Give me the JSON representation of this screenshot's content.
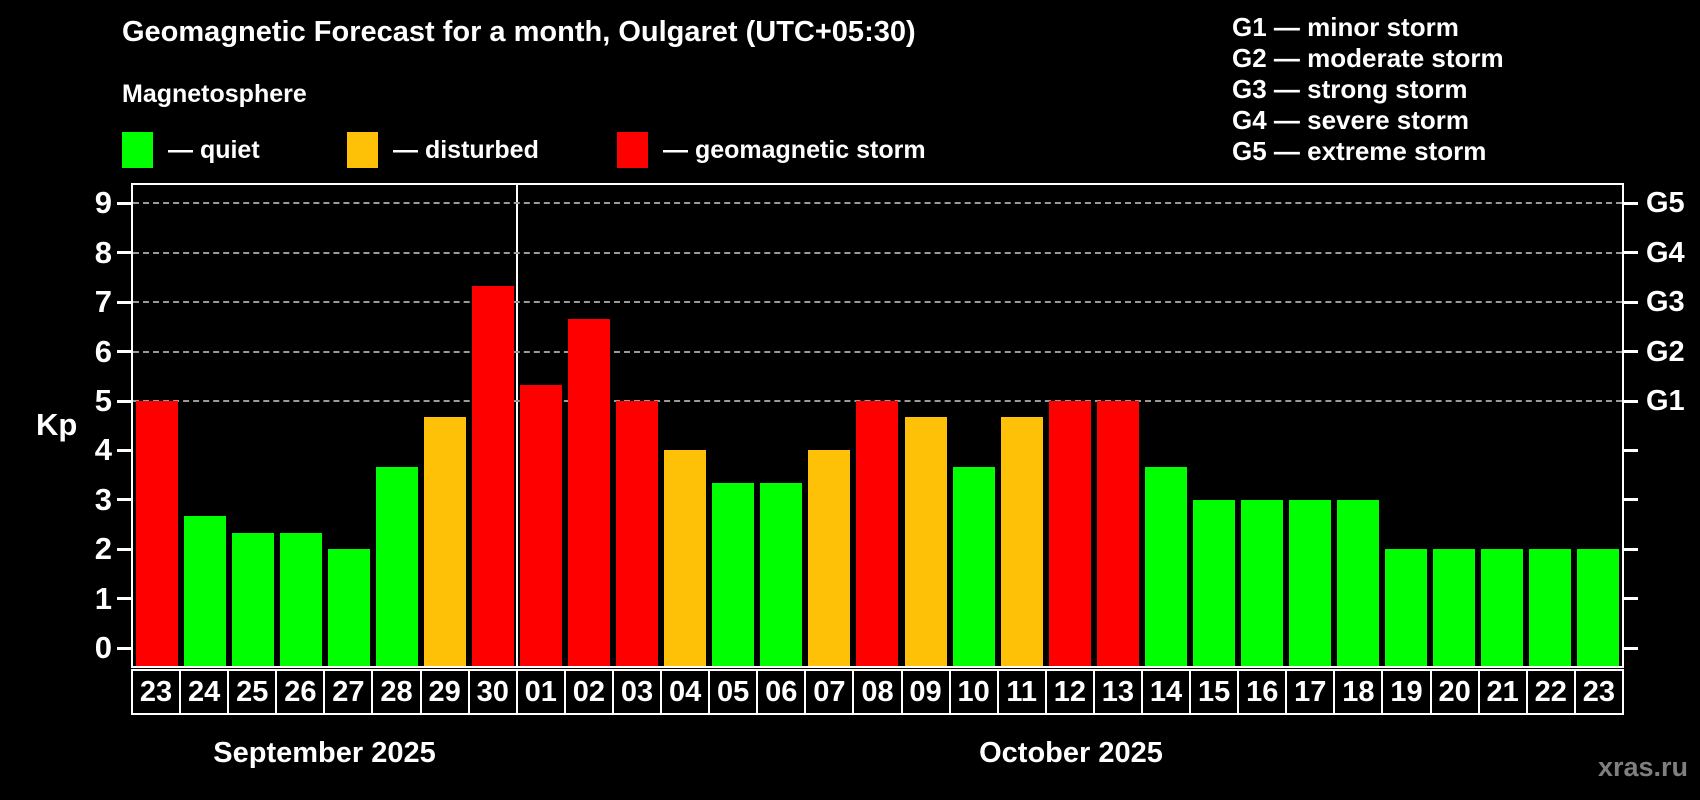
{
  "title": "Geomagnetic Forecast for a month, Oulgaret (UTC+05:30)",
  "subtitle": "Magnetosphere",
  "legend": {
    "items": [
      {
        "label": "— quiet",
        "status": "quiet",
        "color": "#00ff00"
      },
      {
        "label": "— disturbed",
        "status": "disturbed",
        "color": "#ffc107"
      },
      {
        "label": "— geomagnetic storm",
        "status": "storm",
        "color": "#ff0000"
      }
    ]
  },
  "g_legend": {
    "lines": [
      "G1 — minor storm",
      "G2 — moderate storm",
      "G3 — strong storm",
      "G4 — severe storm",
      "G5 — extreme storm"
    ]
  },
  "axis": {
    "kp_label": "Kp",
    "left_ticks": [
      0,
      1,
      2,
      3,
      4,
      5,
      6,
      7,
      8,
      9
    ],
    "right_labels": [
      {
        "kp": 5,
        "label": "G1"
      },
      {
        "kp": 6,
        "label": "G2"
      },
      {
        "kp": 7,
        "label": "G3"
      },
      {
        "kp": 8,
        "label": "G4"
      },
      {
        "kp": 9,
        "label": "G5"
      }
    ]
  },
  "months": [
    {
      "label": "September 2025"
    },
    {
      "label": "October 2025"
    }
  ],
  "watermark": "xras.ru",
  "colors": {
    "quiet": "#00ff00",
    "disturbed": "#ffc107",
    "storm": "#ff0000",
    "grid": "#9a9a9a",
    "axis": "#ffffff",
    "background": "#000000"
  },
  "chart_data": {
    "type": "bar",
    "title": "Geomagnetic Forecast for a month, Oulgaret (UTC+05:30)",
    "xlabel": "",
    "ylabel": "Kp",
    "ylim": [
      -0.4,
      9.4
    ],
    "grid": "dashed horizontal at Kp 5-9 only",
    "gridlines_kp": [
      5,
      6,
      7,
      8,
      9
    ],
    "month_separator_after_index": 7,
    "bars": [
      {
        "month": "September 2025",
        "day": "23",
        "kp": 5.0,
        "status": "storm"
      },
      {
        "month": "September 2025",
        "day": "24",
        "kp": 2.67,
        "status": "quiet"
      },
      {
        "month": "September 2025",
        "day": "25",
        "kp": 2.33,
        "status": "quiet"
      },
      {
        "month": "September 2025",
        "day": "26",
        "kp": 2.33,
        "status": "quiet"
      },
      {
        "month": "September 2025",
        "day": "27",
        "kp": 2.0,
        "status": "quiet"
      },
      {
        "month": "September 2025",
        "day": "28",
        "kp": 3.67,
        "status": "quiet"
      },
      {
        "month": "September 2025",
        "day": "29",
        "kp": 4.67,
        "status": "disturbed"
      },
      {
        "month": "September 2025",
        "day": "30",
        "kp": 7.33,
        "status": "storm"
      },
      {
        "month": "October 2025",
        "day": "01",
        "kp": 5.33,
        "status": "storm"
      },
      {
        "month": "October 2025",
        "day": "02",
        "kp": 6.67,
        "status": "storm"
      },
      {
        "month": "October 2025",
        "day": "03",
        "kp": 5.0,
        "status": "storm"
      },
      {
        "month": "October 2025",
        "day": "04",
        "kp": 4.0,
        "status": "disturbed"
      },
      {
        "month": "October 2025",
        "day": "05",
        "kp": 3.33,
        "status": "quiet"
      },
      {
        "month": "October 2025",
        "day": "06",
        "kp": 3.33,
        "status": "quiet"
      },
      {
        "month": "October 2025",
        "day": "07",
        "kp": 4.0,
        "status": "disturbed"
      },
      {
        "month": "October 2025",
        "day": "08",
        "kp": 5.0,
        "status": "storm"
      },
      {
        "month": "October 2025",
        "day": "09",
        "kp": 4.67,
        "status": "disturbed"
      },
      {
        "month": "October 2025",
        "day": "10",
        "kp": 3.67,
        "status": "quiet"
      },
      {
        "month": "October 2025",
        "day": "11",
        "kp": 4.67,
        "status": "disturbed"
      },
      {
        "month": "October 2025",
        "day": "12",
        "kp": 5.0,
        "status": "storm"
      },
      {
        "month": "October 2025",
        "day": "13",
        "kp": 5.0,
        "status": "storm"
      },
      {
        "month": "October 2025",
        "day": "14",
        "kp": 3.67,
        "status": "quiet"
      },
      {
        "month": "October 2025",
        "day": "15",
        "kp": 3.0,
        "status": "quiet"
      },
      {
        "month": "October 2025",
        "day": "16",
        "kp": 3.0,
        "status": "quiet"
      },
      {
        "month": "October 2025",
        "day": "17",
        "kp": 3.0,
        "status": "quiet"
      },
      {
        "month": "October 2025",
        "day": "18",
        "kp": 3.0,
        "status": "quiet"
      },
      {
        "month": "October 2025",
        "day": "19",
        "kp": 2.0,
        "status": "quiet"
      },
      {
        "month": "October 2025",
        "day": "20",
        "kp": 2.0,
        "status": "quiet"
      },
      {
        "month": "October 2025",
        "day": "21",
        "kp": 2.0,
        "status": "quiet"
      },
      {
        "month": "October 2025",
        "day": "22",
        "kp": 2.0,
        "status": "quiet"
      },
      {
        "month": "October 2025",
        "day": "23",
        "kp": 2.0,
        "status": "quiet"
      }
    ]
  }
}
